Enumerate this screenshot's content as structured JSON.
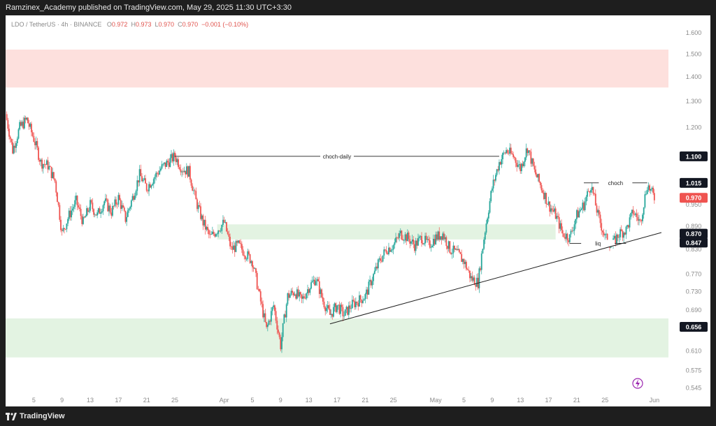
{
  "header": {
    "published": "Ramzinex_Academy published on TradingView.com, May 29, 2025 11:30 UTC+3:30"
  },
  "legend": {
    "symbol": "LDO / TetherUS · 4h · BINANCE",
    "o_label": "O",
    "o": "0.972",
    "h_label": "H",
    "h": "0.973",
    "l_label": "L",
    "l": "0.970",
    "c_label": "C",
    "c": "0.970",
    "change": "−0.001 (−0.10%)"
  },
  "footer": {
    "brand": "TradingView"
  },
  "colors": {
    "up": "#26a69a",
    "down": "#ef5350",
    "supply_zone": "#fde0dd",
    "demand_zone": "#e3f3e2",
    "current_price": "#ef5350"
  },
  "chart_data": {
    "type": "candlestick",
    "y_axis_ticks": [
      "1.600",
      "1.500",
      "1.400",
      "1.300",
      "1.200",
      "1.100",
      "1.015",
      "0.970",
      "0.950",
      "0.890",
      "0.870",
      "0.847",
      "0.830",
      "0.770",
      "0.730",
      "0.690",
      "0.656",
      "0.610",
      "0.575",
      "0.545"
    ],
    "y_axis_range": [
      0.54,
      1.63
    ],
    "y_scale": "log",
    "highlighted_prices": [
      {
        "label": "1.100",
        "value": 1.1,
        "style": "dark"
      },
      {
        "label": "1.015",
        "value": 1.015,
        "style": "dark"
      },
      {
        "label": "0.970",
        "value": 0.97,
        "style": "red"
      },
      {
        "label": "0.870",
        "value": 0.87,
        "style": "dark"
      },
      {
        "label": "0.847",
        "value": 0.847,
        "style": "dark"
      },
      {
        "label": "0.656",
        "value": 0.656,
        "style": "dark"
      }
    ],
    "x_axis_ticks": [
      "5",
      "9",
      "13",
      "17",
      "21",
      "25",
      "Apr",
      "5",
      "9",
      "13",
      "17",
      "21",
      "25",
      "May",
      "5",
      "9",
      "13",
      "17",
      "21",
      "25",
      "Jun"
    ],
    "x_axis_tick_dates": [
      "2025-03-05",
      "2025-03-09",
      "2025-03-13",
      "2025-03-17",
      "2025-03-21",
      "2025-03-25",
      "2025-04-01",
      "2025-04-05",
      "2025-04-09",
      "2025-04-13",
      "2025-04-17",
      "2025-04-21",
      "2025-04-25",
      "2025-05-01",
      "2025-05-05",
      "2025-05-09",
      "2025-05-13",
      "2025-05-17",
      "2025-05-21",
      "2025-05-25",
      "2025-06-01"
    ],
    "x_axis_range": [
      "2025-03-01",
      "2025-06-03"
    ],
    "zones": [
      {
        "name": "supply",
        "from": 1.355,
        "to": 1.52,
        "start": "2025-03-01",
        "end": "2025-06-03"
      },
      {
        "name": "demand-mid",
        "from": 0.855,
        "to": 0.895,
        "start": "2025-03-31",
        "end": "2025-05-18"
      },
      {
        "name": "demand-low",
        "from": 0.598,
        "to": 0.673,
        "start": "2025-03-01",
        "end": "2025-06-03"
      }
    ],
    "annotations": [
      {
        "text": "choch-daily",
        "y": 1.1,
        "start": "2025-03-25",
        "end": "2025-05-10"
      },
      {
        "text": "choch",
        "y": 1.015,
        "start": "2025-05-22",
        "end": "2025-05-31"
      },
      {
        "text": "liq",
        "y": 0.845,
        "start": "2025-05-20",
        "end": "2025-05-28"
      }
    ],
    "trendline": {
      "start": {
        "x": "2025-04-16",
        "y": 0.662
      },
      "end": {
        "x": "2025-06-02",
        "y": 0.873
      }
    },
    "price_path": [
      [
        "2025-03-01",
        1.25
      ],
      [
        "2025-03-02",
        1.12
      ],
      [
        "2025-03-03",
        1.2
      ],
      [
        "2025-03-04",
        1.23
      ],
      [
        "2025-03-05",
        1.16
      ],
      [
        "2025-03-06",
        1.08
      ],
      [
        "2025-03-07",
        1.07
      ],
      [
        "2025-03-08",
        1.02
      ],
      [
        "2025-03-09",
        0.87
      ],
      [
        "2025-03-10",
        0.92
      ],
      [
        "2025-03-11",
        0.96
      ],
      [
        "2025-03-12",
        0.9
      ],
      [
        "2025-03-13",
        0.95
      ],
      [
        "2025-03-14",
        0.92
      ],
      [
        "2025-03-15",
        0.96
      ],
      [
        "2025-03-16",
        0.93
      ],
      [
        "2025-03-17",
        0.97
      ],
      [
        "2025-03-18",
        0.91
      ],
      [
        "2025-03-19",
        0.97
      ],
      [
        "2025-03-20",
        1.04
      ],
      [
        "2025-03-21",
        1.0
      ],
      [
        "2025-03-22",
        1.03
      ],
      [
        "2025-03-23",
        1.06
      ],
      [
        "2025-03-24",
        1.08
      ],
      [
        "2025-03-25",
        1.1
      ],
      [
        "2025-03-26",
        1.06
      ],
      [
        "2025-03-27",
        1.05
      ],
      [
        "2025-03-28",
        0.96
      ],
      [
        "2025-03-29",
        0.9
      ],
      [
        "2025-03-30",
        0.86
      ],
      [
        "2025-03-31",
        0.88
      ],
      [
        "2025-04-01",
        0.9
      ],
      [
        "2025-04-02",
        0.83
      ],
      [
        "2025-04-03",
        0.84
      ],
      [
        "2025-04-04",
        0.82
      ],
      [
        "2025-04-05",
        0.8
      ],
      [
        "2025-04-06",
        0.72
      ],
      [
        "2025-04-07",
        0.65
      ],
      [
        "2025-04-08",
        0.7
      ],
      [
        "2025-04-09",
        0.62
      ],
      [
        "2025-04-10",
        0.72
      ],
      [
        "2025-04-11",
        0.73
      ],
      [
        "2025-04-12",
        0.71
      ],
      [
        "2025-04-13",
        0.74
      ],
      [
        "2025-04-14",
        0.76
      ],
      [
        "2025-04-15",
        0.71
      ],
      [
        "2025-04-16",
        0.68
      ],
      [
        "2025-04-17",
        0.7
      ],
      [
        "2025-04-18",
        0.68
      ],
      [
        "2025-04-19",
        0.7
      ],
      [
        "2025-04-20",
        0.71
      ],
      [
        "2025-04-21",
        0.72
      ],
      [
        "2025-04-22",
        0.76
      ],
      [
        "2025-04-23",
        0.8
      ],
      [
        "2025-04-24",
        0.83
      ],
      [
        "2025-04-25",
        0.84
      ],
      [
        "2025-04-26",
        0.87
      ],
      [
        "2025-04-27",
        0.86
      ],
      [
        "2025-04-28",
        0.84
      ],
      [
        "2025-04-29",
        0.86
      ],
      [
        "2025-04-30",
        0.84
      ],
      [
        "2025-05-01",
        0.86
      ],
      [
        "2025-05-02",
        0.87
      ],
      [
        "2025-05-03",
        0.83
      ],
      [
        "2025-05-04",
        0.82
      ],
      [
        "2025-05-05",
        0.8
      ],
      [
        "2025-05-06",
        0.76
      ],
      [
        "2025-05-07",
        0.75
      ],
      [
        "2025-05-08",
        0.88
      ],
      [
        "2025-05-09",
        1.0
      ],
      [
        "2025-05-10",
        1.08
      ],
      [
        "2025-05-11",
        1.12
      ],
      [
        "2025-05-12",
        1.1
      ],
      [
        "2025-05-13",
        1.06
      ],
      [
        "2025-05-14",
        1.13
      ],
      [
        "2025-05-15",
        1.05
      ],
      [
        "2025-05-16",
        1.0
      ],
      [
        "2025-05-17",
        0.95
      ],
      [
        "2025-05-18",
        0.92
      ],
      [
        "2025-05-19",
        0.87
      ],
      [
        "2025-05-20",
        0.86
      ],
      [
        "2025-05-21",
        0.92
      ],
      [
        "2025-05-22",
        0.95
      ],
      [
        "2025-05-23",
        1.01
      ],
      [
        "2025-05-24",
        0.92
      ],
      [
        "2025-05-25",
        0.86
      ],
      [
        "2025-05-26",
        0.84
      ],
      [
        "2025-05-27",
        0.87
      ],
      [
        "2025-05-28",
        0.88
      ],
      [
        "2025-05-29",
        0.93
      ],
      [
        "2025-05-30",
        0.9
      ],
      [
        "2025-05-31",
        1.01
      ],
      [
        "2025-06-01",
        0.97
      ]
    ],
    "last_price": 0.97
  }
}
